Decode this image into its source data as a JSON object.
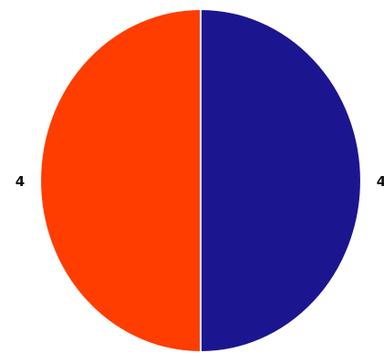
{
  "chart_data": {
    "type": "pie",
    "slices": [
      {
        "value": 4,
        "label": "4",
        "color": "#ff3d00"
      },
      {
        "value": 4,
        "label": "4",
        "color": "#1b168f"
      }
    ],
    "start_angle_deg": 90,
    "direction": "clockwise-right-first",
    "legend": false,
    "separator_color": "#ffffff"
  }
}
